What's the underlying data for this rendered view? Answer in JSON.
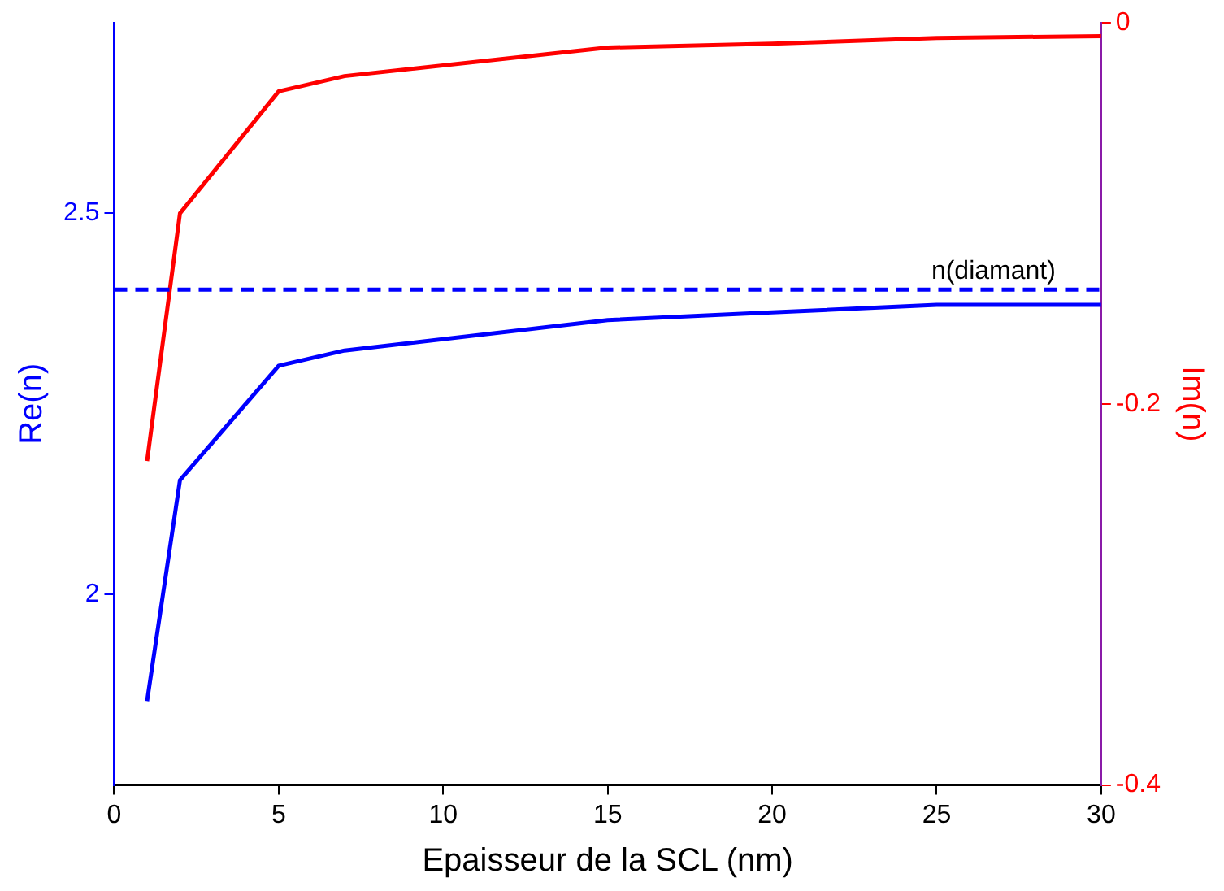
{
  "chart_data": {
    "type": "line",
    "xlabel": "Epaisseur de la SCL (nm)",
    "ylabel": "Re(n)",
    "y2label": "Im(n)",
    "x": [
      1,
      2,
      5,
      7,
      15,
      20,
      25,
      30
    ],
    "series": [
      {
        "color": "#0000ff",
        "values": [
          1.86,
          2.15,
          2.3,
          2.32,
          2.36,
          2.37,
          2.38,
          2.38
        ]
      },
      {
        "color": "#ff0000",
        "axis": "y2",
        "values": [
          -0.23,
          -0.1,
          -0.036,
          -0.028,
          -0.013,
          -0.011,
          -0.008,
          -0.007
        ]
      }
    ],
    "xlim": [
      0,
      30
    ],
    "xticks": [
      0,
      5,
      10,
      15,
      20,
      25,
      30
    ],
    "ylim": [
      1.75,
      2.75
    ],
    "yticks": [
      2,
      2.5
    ],
    "y2lim": [
      -0.4,
      0
    ],
    "y2ticks": [
      -0.4,
      -0.2,
      0
    ],
    "ref_lines": [
      {
        "axis": "y",
        "value": 2.4,
        "label": "n(diamant)",
        "color": "#0000ff",
        "line_style": "dashed"
      }
    ],
    "grid": false,
    "legend": false,
    "marker": "none",
    "line_style": "solid"
  }
}
